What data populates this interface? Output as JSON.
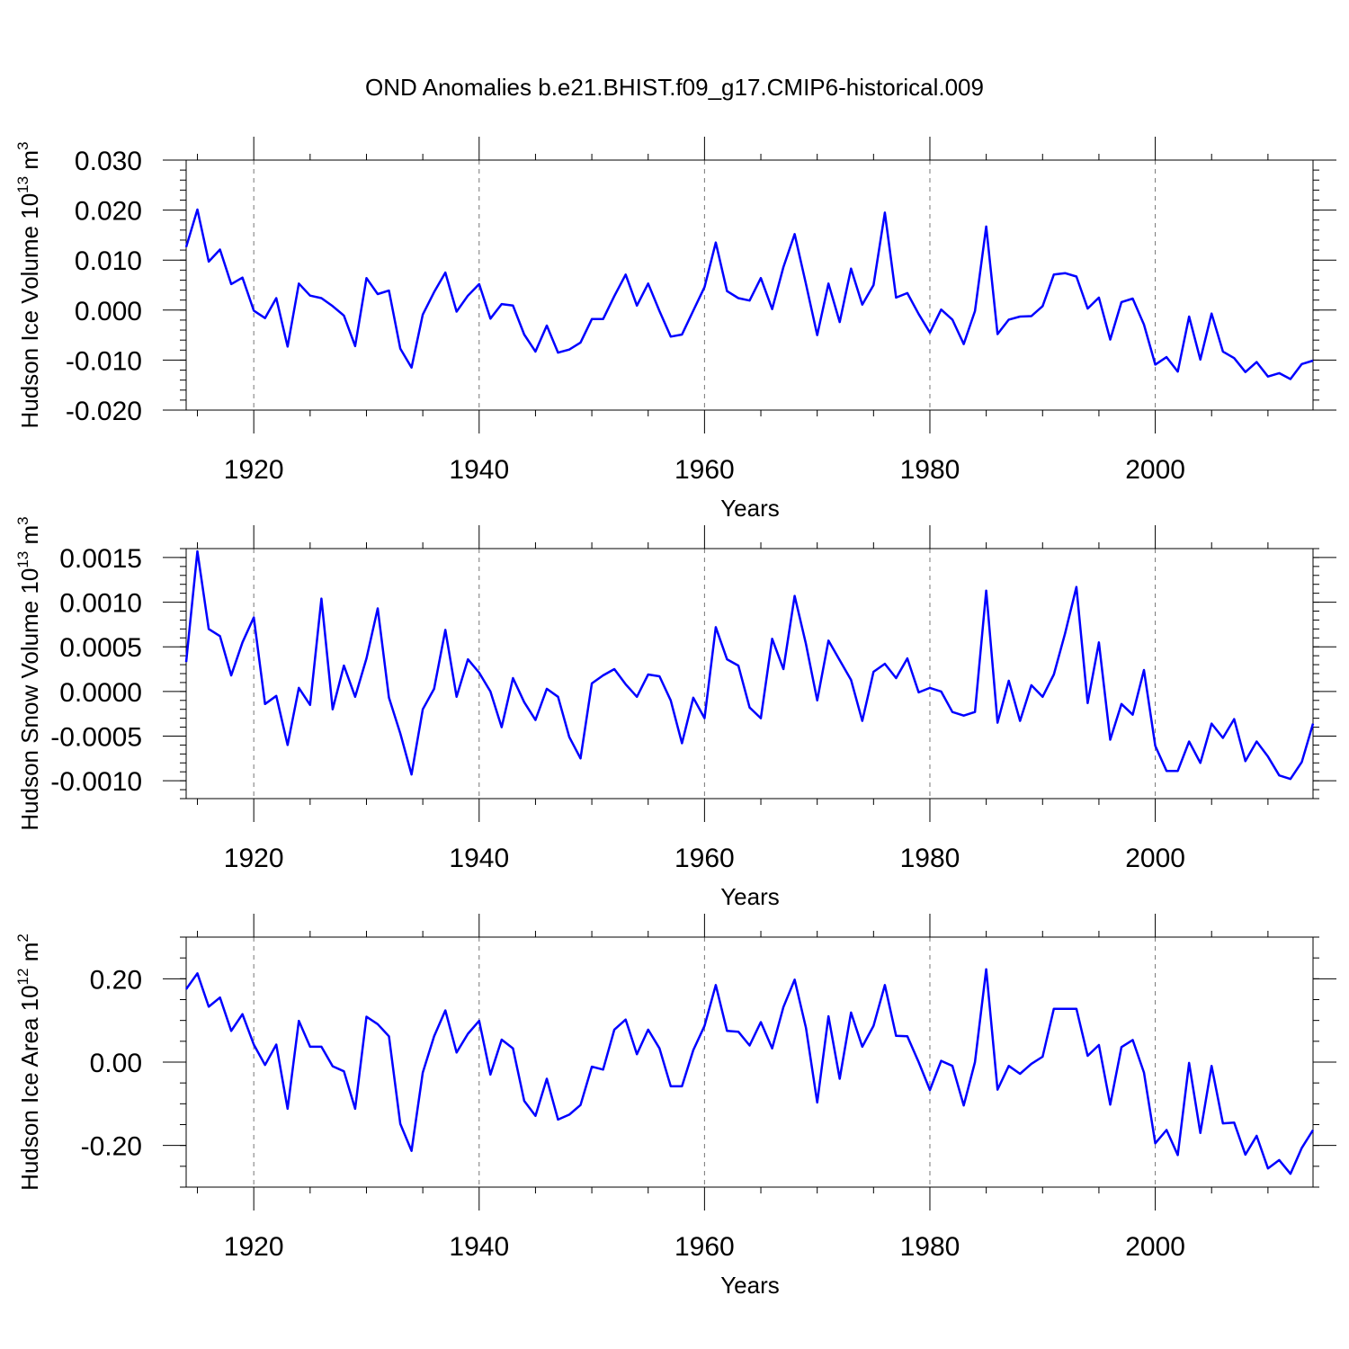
{
  "title": "OND Anomalies b.e21.BHIST.f09_g17.CMIP6-historical.009",
  "colors": {
    "series": "#0000ff",
    "frame": "#000000",
    "grid": "#777777"
  },
  "chart_data": [
    {
      "type": "line",
      "name": "ice-volume",
      "ylabel": {
        "main": "Hudson Ice Volume 10",
        "sup": "13",
        "unit": " m",
        "unit_sup": "3"
      },
      "xlabel": "Years",
      "xlim": [
        1914,
        2014
      ],
      "ylim": [
        -0.02,
        0.03
      ],
      "yticks": [
        -0.02,
        -0.01,
        0.0,
        0.01,
        0.02,
        0.03
      ],
      "ytick_labels": [
        "-0.020",
        "-0.010",
        "0.000",
        "0.010",
        "0.020",
        "0.030"
      ],
      "ymin_step": 0.002,
      "xticks": [
        1920,
        1940,
        1960,
        1980,
        2000
      ],
      "xtick_labels": [
        "1920",
        "1940",
        "1960",
        "1980",
        "2000"
      ],
      "x_start": 1914,
      "values": [
        0.0126,
        0.0201,
        0.0097,
        0.0121,
        0.0052,
        0.0065,
        -0.0001,
        -0.0016,
        0.0024,
        -0.0073,
        0.0053,
        0.0029,
        0.0024,
        0.0008,
        -0.0011,
        -0.0072,
        0.0064,
        0.0032,
        0.0039,
        -0.0077,
        -0.0115,
        -0.0009,
        0.0036,
        0.0075,
        -0.0003,
        0.0029,
        0.0052,
        -0.0017,
        0.0012,
        0.0009,
        -0.0049,
        -0.0083,
        -0.0031,
        -0.0085,
        -0.0079,
        -0.0065,
        -0.0018,
        -0.0018,
        0.0028,
        0.0071,
        0.0009,
        0.0053,
        -0.0002,
        -0.0053,
        -0.0049,
        -0.0001,
        0.0046,
        0.0135,
        0.0038,
        0.0024,
        0.0019,
        0.0064,
        0.0002,
        0.0086,
        0.0152,
        0.0052,
        -0.005,
        0.0053,
        -0.0024,
        0.0083,
        0.0011,
        0.005,
        0.0195,
        0.0025,
        0.0034,
        -0.0008,
        -0.0045,
        0.0001,
        -0.0019,
        -0.0068,
        -0.0002,
        0.0167,
        -0.0048,
        -0.0019,
        -0.0013,
        -0.0012,
        0.0008,
        0.0071,
        0.0074,
        0.0067,
        0.0003,
        0.0025,
        -0.0059,
        0.0016,
        0.0023,
        -0.0029,
        -0.0109,
        -0.0094,
        -0.0123,
        -0.0013,
        -0.0099,
        -0.0007,
        -0.0083,
        -0.0096,
        -0.0124,
        -0.0104,
        -0.0133,
        -0.0126,
        -0.0138,
        -0.0108,
        -0.0101
      ]
    },
    {
      "type": "line",
      "name": "snow-volume",
      "ylabel": {
        "main": "Hudson Snow Volume 10",
        "sup": "13",
        "unit": " m",
        "unit_sup": "3"
      },
      "xlabel": "Years",
      "xlim": [
        1914,
        2014
      ],
      "ylim": [
        -0.0012,
        0.0016
      ],
      "yticks": [
        -0.001,
        -0.0005,
        0.0,
        0.0005,
        0.001,
        0.0015
      ],
      "ytick_labels": [
        "-0.0010",
        "-0.0005",
        "0.0000",
        "0.0005",
        "0.0010",
        "0.0015"
      ],
      "ymin_step": 0.0001,
      "xticks": [
        1920,
        1940,
        1960,
        1980,
        2000
      ],
      "xtick_labels": [
        "1920",
        "1940",
        "1960",
        "1980",
        "2000"
      ],
      "x_start": 1914,
      "values": [
        0.00033,
        0.00157,
        0.0007,
        0.00062,
        0.00018,
        0.00055,
        0.00083,
        -0.00014,
        -5e-05,
        -0.0006,
        4e-05,
        -0.00015,
        0.00104,
        -0.0002,
        0.00029,
        -6e-05,
        0.00037,
        0.00093,
        -7e-05,
        -0.00047,
        -0.00093,
        -0.0002,
        3e-05,
        0.00069,
        -6e-05,
        0.00036,
        0.00021,
        0.0,
        -0.0004,
        0.00015,
        -0.00012,
        -0.00032,
        3e-05,
        -6e-05,
        -0.00051,
        -0.00075,
        9e-05,
        0.00018,
        0.00025,
        8e-05,
        -6e-05,
        0.00019,
        0.00017,
        -0.0001,
        -0.00058,
        -7e-05,
        -0.0003,
        0.00072,
        0.00036,
        0.00029,
        -0.00018,
        -0.0003,
        0.00059,
        0.00025,
        0.00107,
        0.00053,
        -0.0001,
        0.00057,
        0.00035,
        0.00013,
        -0.00033,
        0.00022,
        0.00031,
        0.00015,
        0.00037,
        -1e-05,
        4e-05,
        0.0,
        -0.00023,
        -0.00027,
        -0.00023,
        0.00113,
        -0.00035,
        0.00012,
        -0.00033,
        7e-05,
        -6e-05,
        0.00019,
        0.00065,
        0.00117,
        -0.00013,
        0.00055,
        -0.00054,
        -0.00014,
        -0.00026,
        0.00024,
        -0.00061,
        -0.00089,
        -0.00089,
        -0.00056,
        -0.0008,
        -0.00036,
        -0.00052,
        -0.00031,
        -0.00078,
        -0.00056,
        -0.00073,
        -0.00094,
        -0.00098,
        -0.00079,
        -0.00036
      ]
    },
    {
      "type": "line",
      "name": "ice-area",
      "ylabel": {
        "main": "Hudson Ice Area 10",
        "sup": "12",
        "unit": " m",
        "unit_sup": "2"
      },
      "xlabel": "Years",
      "xlim": [
        1914,
        2014
      ],
      "ylim": [
        -0.3,
        0.3
      ],
      "yticks": [
        -0.2,
        0.0,
        0.2
      ],
      "ytick_labels": [
        "-0.20",
        "0.00",
        "0.20"
      ],
      "ymin_step": 0.05,
      "xticks": [
        1920,
        1940,
        1960,
        1980,
        2000
      ],
      "xtick_labels": [
        "1920",
        "1940",
        "1960",
        "1980",
        "2000"
      ],
      "x_start": 1914,
      "values": [
        0.175,
        0.213,
        0.133,
        0.155,
        0.075,
        0.115,
        0.042,
        -0.007,
        0.042,
        -0.112,
        0.099,
        0.037,
        0.037,
        -0.01,
        -0.022,
        -0.112,
        0.109,
        0.091,
        0.062,
        -0.148,
        -0.213,
        -0.025,
        0.062,
        0.124,
        0.023,
        0.068,
        0.099,
        -0.03,
        0.054,
        0.033,
        -0.093,
        -0.129,
        -0.04,
        -0.138,
        -0.126,
        -0.103,
        -0.011,
        -0.018,
        0.078,
        0.102,
        0.019,
        0.078,
        0.033,
        -0.058,
        -0.058,
        0.029,
        0.087,
        0.185,
        0.075,
        0.073,
        0.04,
        0.096,
        0.033,
        0.132,
        0.198,
        0.082,
        -0.097,
        0.11,
        -0.04,
        0.119,
        0.037,
        0.087,
        0.185,
        0.063,
        0.062,
        0.0,
        -0.067,
        0.003,
        -0.009,
        -0.104,
        0.0,
        0.223,
        -0.066,
        -0.009,
        -0.028,
        -0.004,
        0.013,
        0.128,
        0.128,
        0.128,
        0.015,
        0.041,
        -0.102,
        0.036,
        0.053,
        -0.025,
        -0.195,
        -0.163,
        -0.223,
        -0.002,
        -0.17,
        -0.009,
        -0.147,
        -0.145,
        -0.222,
        -0.177,
        -0.255,
        -0.235,
        -0.268,
        -0.206,
        -0.163
      ]
    }
  ]
}
